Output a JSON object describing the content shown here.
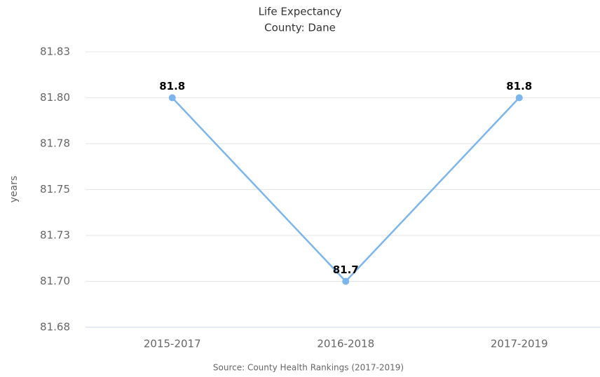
{
  "chart_data": {
    "type": "line",
    "title": "Life Expectancy",
    "subtitle": "County: Dane",
    "y_label": "years",
    "source": "Source: County Health Rankings (2017-2019)",
    "categories": [
      "2015-2017",
      "2016-2018",
      "2017-2019"
    ],
    "series": [
      {
        "name": "Life Expectancy",
        "color": "#7cb5ec",
        "values": [
          81.8,
          81.7,
          81.8
        ]
      }
    ],
    "ylim": [
      81.675,
      81.825
    ],
    "yticks": [
      {
        "value": 81.675,
        "label": "81.68"
      },
      {
        "value": 81.7,
        "label": "81.70"
      },
      {
        "value": 81.725,
        "label": "81.73"
      },
      {
        "value": 81.75,
        "label": "81.75"
      },
      {
        "value": 81.775,
        "label": "81.78"
      },
      {
        "value": 81.8,
        "label": "81.80"
      },
      {
        "value": 81.825,
        "label": "81.83"
      }
    ],
    "grid": true
  }
}
